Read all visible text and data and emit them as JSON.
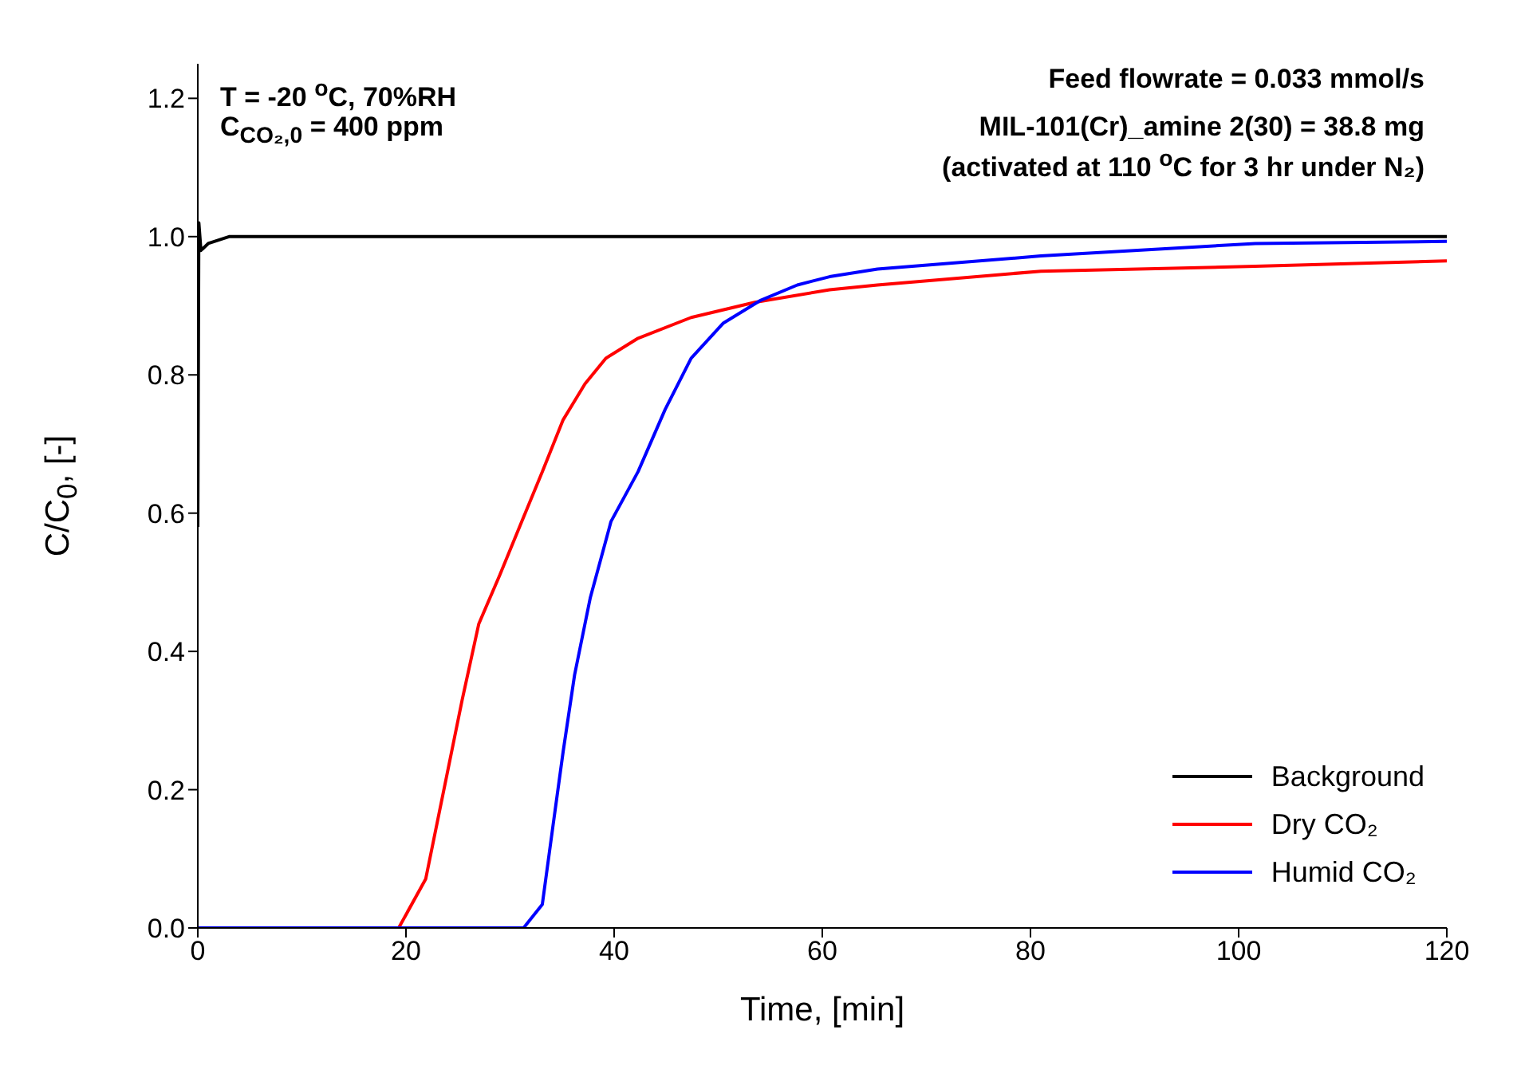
{
  "chart_data": {
    "type": "line",
    "xlabel": "Time, [min]",
    "ylabel": "C/C$_{0}$, [-]",
    "xlim": [
      0,
      120
    ],
    "xticks": [
      0,
      20,
      40,
      60,
      80,
      100,
      120
    ],
    "ylim": [
      0,
      1.25
    ],
    "yticks": [
      {
        "value": 0,
        "label": "0.0"
      },
      {
        "value": 0.2,
        "label": "0.2"
      },
      {
        "value": 0.4,
        "label": "0.4"
      },
      {
        "value": 0.6,
        "label": "0.6"
      },
      {
        "value": 0.8,
        "label": "0.8"
      },
      {
        "value": 1,
        "label": "1.0"
      },
      {
        "value": 1.2,
        "label": "1.2"
      }
    ],
    "grid": false,
    "legend": "bottom right",
    "line_style": "solid",
    "annotations": [
      "T = -20 $^{o}$C, 70%RH",
      "C$_{CO₂,0}$ = 400 ppm",
      "Feed flowrate = 0.033 mmol/s",
      "MIL-101(Cr)_amine  2(30) = 38.8 mg",
      "(activated at 110 $^{o}$C for 3 hr under N₂)"
    ],
    "series": [
      {
        "name": "Background",
        "color": "#000000",
        "x": [
          0,
          0.1,
          0.3,
          1,
          3,
          120
        ],
        "values": [
          0.58,
          1.02,
          0.98,
          0.99,
          1.0,
          1.0
        ]
      },
      {
        "name": "Dry CO₂",
        "color": "#ff0000",
        "x": [
          0,
          19.3,
          21.9,
          23.9,
          25.4,
          27.0,
          29.0,
          31.1,
          33.1,
          35.1,
          37.2,
          39.2,
          42.3,
          47.4,
          53.5,
          60.7,
          65.3,
          81,
          101.6,
          120
        ],
        "values": [
          0,
          0,
          0.071,
          0.219,
          0.33,
          0.44,
          0.51,
          0.587,
          0.66,
          0.735,
          0.787,
          0.824,
          0.853,
          0.883,
          0.905,
          0.923,
          0.93,
          0.95,
          0.957,
          0.965
        ]
      },
      {
        "name": "Humid CO₂",
        "color": "#0000ff",
        "x": [
          0,
          31.3,
          33.1,
          34.1,
          35.1,
          36.2,
          37.7,
          39.7,
          42.3,
          44.9,
          47.4,
          50.5,
          54.1,
          57.6,
          60.7,
          65.3,
          81,
          101.6,
          120
        ],
        "values": [
          0,
          0,
          0.034,
          0.145,
          0.255,
          0.366,
          0.477,
          0.588,
          0.66,
          0.75,
          0.824,
          0.875,
          0.908,
          0.93,
          0.942,
          0.953,
          0.972,
          0.99,
          0.993
        ]
      }
    ]
  }
}
